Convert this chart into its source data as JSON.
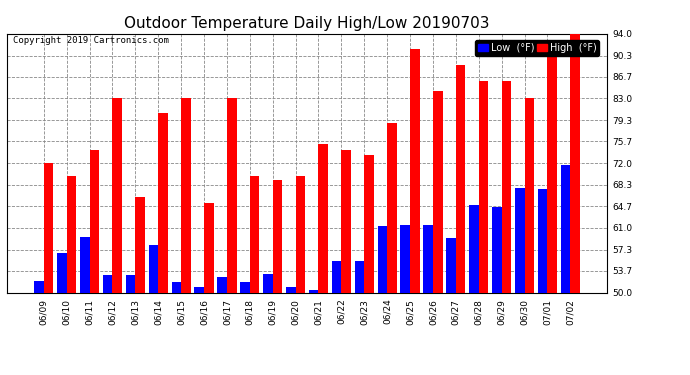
{
  "title": "Outdoor Temperature Daily High/Low 20190703",
  "copyright": "Copyright 2019 Cartronics.com",
  "categories": [
    "06/09",
    "06/10",
    "06/11",
    "06/12",
    "06/13",
    "06/14",
    "06/15",
    "06/16",
    "06/17",
    "06/18",
    "06/19",
    "06/20",
    "06/21",
    "06/22",
    "06/23",
    "06/24",
    "06/25",
    "06/26",
    "06/27",
    "06/28",
    "06/29",
    "06/30",
    "07/01",
    "07/02"
  ],
  "high_values": [
    72.0,
    69.8,
    74.3,
    83.0,
    66.2,
    80.6,
    83.0,
    65.3,
    83.0,
    69.8,
    69.1,
    69.8,
    75.2,
    74.3,
    73.4,
    78.8,
    91.4,
    84.2,
    88.7,
    86.0,
    86.0,
    83.0,
    91.4,
    94.0
  ],
  "low_values": [
    52.0,
    56.8,
    59.5,
    52.9,
    52.9,
    58.1,
    51.8,
    50.9,
    52.7,
    51.8,
    53.2,
    50.9,
    50.5,
    55.4,
    55.4,
    61.3,
    61.5,
    61.5,
    59.2,
    64.8,
    64.6,
    67.8,
    67.6,
    71.6
  ],
  "high_color": "#ff0000",
  "low_color": "#0000ff",
  "background_color": "#ffffff",
  "plot_bg_color": "#ffffff",
  "grid_color": "#888888",
  "ylim_min": 50.0,
  "ylim_max": 94.0,
  "yticks": [
    50.0,
    53.7,
    57.3,
    61.0,
    64.7,
    68.3,
    72.0,
    75.7,
    79.3,
    83.0,
    86.7,
    90.3,
    94.0
  ],
  "title_fontsize": 11,
  "copyright_fontsize": 6.5,
  "tick_fontsize": 6.5,
  "legend_fontsize": 7,
  "bar_width": 0.42
}
